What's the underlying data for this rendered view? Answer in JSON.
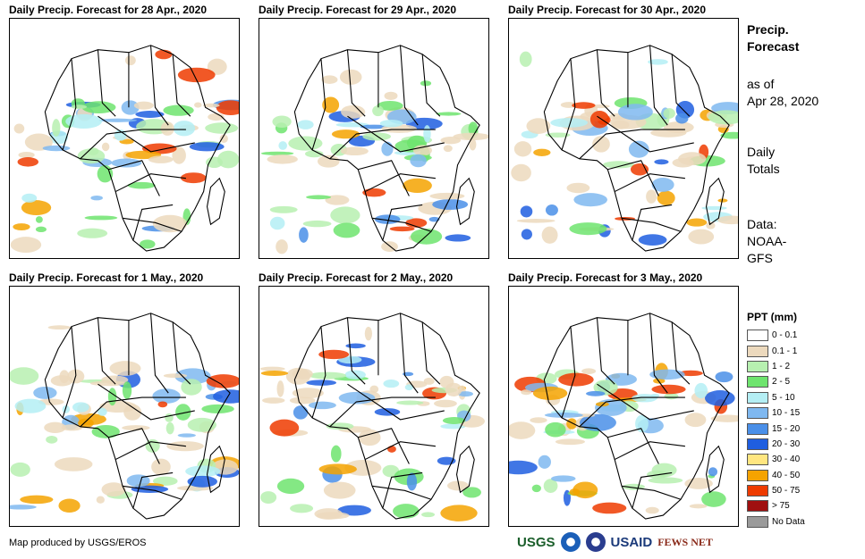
{
  "panels": [
    {
      "title": "Daily Precip. Forecast for 28 Apr., 2020"
    },
    {
      "title": "Daily Precip. Forecast for 29 Apr., 2020"
    },
    {
      "title": "Daily Precip. Forecast for 30 Apr., 2020"
    },
    {
      "title": "Daily Precip. Forecast for 1 May., 2020"
    },
    {
      "title": "Daily Precip. Forecast for 2 May., 2020"
    },
    {
      "title": "Daily Precip. Forecast for 3 May., 2020"
    }
  ],
  "side": {
    "heading_line1": "Precip.",
    "heading_line2": "Forecast",
    "asof_line1": "as of",
    "asof_line2": "Apr 28, 2020",
    "totals_line1": "Daily",
    "totals_line2": "Totals",
    "data_line1": "Data:",
    "data_line2": "NOAA-",
    "data_line3": "GFS"
  },
  "legend": {
    "title": "PPT (mm)",
    "items": [
      {
        "label": "0 - 0.1",
        "color": "#ffffff"
      },
      {
        "label": "0.1 - 1",
        "color": "#ecd9bd"
      },
      {
        "label": "1 - 2",
        "color": "#b7f0b0"
      },
      {
        "label": "2 - 5",
        "color": "#6ee46e"
      },
      {
        "label": "5 - 10",
        "color": "#b4eef4"
      },
      {
        "label": "10 - 15",
        "color": "#7fb8f0"
      },
      {
        "label": "15 - 20",
        "color": "#4a8fe8"
      },
      {
        "label": "20 - 30",
        "color": "#1f5ee0"
      },
      {
        "label": "30 - 40",
        "color": "#ffe680"
      },
      {
        "label": "40 - 50",
        "color": "#f5a300"
      },
      {
        "label": "50 - 75",
        "color": "#ee3b00"
      },
      {
        "label": "> 75",
        "color": "#a01010"
      },
      {
        "label": "No Data",
        "color": "#9a9a9a"
      }
    ]
  },
  "credit": "Map produced by USGS/EROS",
  "logos": {
    "usgs": "USGS",
    "usaid": "USAID",
    "fews": "FEWS NET"
  }
}
